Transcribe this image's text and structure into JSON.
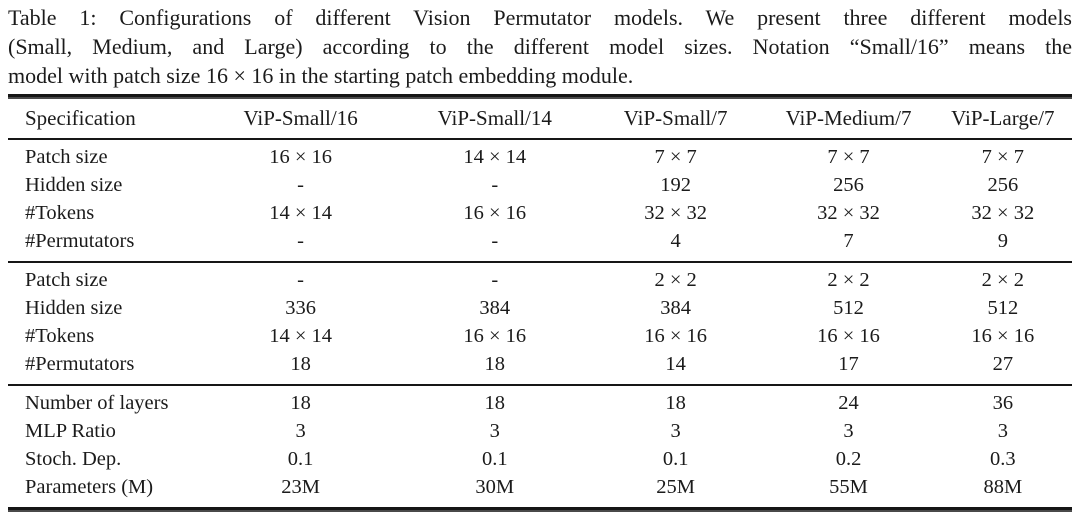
{
  "caption": {
    "lines": [
      "Table 1: Configurations of different Vision Permutator models.  We present three different models",
      "(Small, Medium, and Large) according to the different model sizes. Notation “Small/16” means the",
      "model with patch size 16 × 16 in the starting patch embedding module."
    ]
  },
  "table": {
    "columns": [
      "Specification",
      "ViP-Small/16",
      "ViP-Small/14",
      "ViP-Small/7",
      "ViP-Medium/7",
      "ViP-Large/7"
    ],
    "sections": [
      {
        "rows": [
          {
            "label": "Patch size",
            "values": [
              "16 × 16",
              "14 × 14",
              "7 × 7",
              "7 × 7",
              "7 × 7"
            ]
          },
          {
            "label": "Hidden size",
            "values": [
              "-",
              "-",
              "192",
              "256",
              "256"
            ]
          },
          {
            "label": "#Tokens",
            "values": [
              "14 × 14",
              "16 × 16",
              "32 × 32",
              "32 × 32",
              "32 × 32"
            ]
          },
          {
            "label": "#Permutators",
            "values": [
              "-",
              "-",
              "4",
              "7",
              "9"
            ]
          }
        ]
      },
      {
        "rows": [
          {
            "label": "Patch size",
            "values": [
              "-",
              "-",
              "2 × 2",
              "2 × 2",
              "2 × 2"
            ]
          },
          {
            "label": "Hidden size",
            "values": [
              "336",
              "384",
              "384",
              "512",
              "512"
            ]
          },
          {
            "label": "#Tokens",
            "values": [
              "14 × 14",
              "16 × 16",
              "16 × 16",
              "16 × 16",
              "16 × 16"
            ]
          },
          {
            "label": "#Permutators",
            "values": [
              "18",
              "18",
              "14",
              "17",
              "27"
            ]
          }
        ]
      },
      {
        "rows": [
          {
            "label": "Number of layers",
            "values": [
              "18",
              "18",
              "18",
              "24",
              "36"
            ]
          },
          {
            "label": "MLP Ratio",
            "values": [
              "3",
              "3",
              "3",
              "3",
              "3"
            ]
          },
          {
            "label": "Stoch. Dep.",
            "values": [
              "0.1",
              "0.1",
              "0.1",
              "0.2",
              "0.3"
            ]
          },
          {
            "label": "Parameters (M)",
            "values": [
              "23M",
              "30M",
              "25M",
              "55M",
              "88M"
            ]
          }
        ]
      }
    ]
  },
  "colors": {
    "text": "#1b1b1b",
    "rule": "#161616",
    "background": "#ffffff"
  }
}
